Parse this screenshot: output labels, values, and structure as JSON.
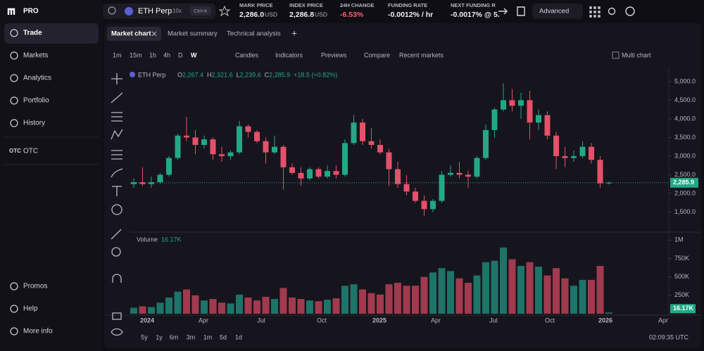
{
  "sidebar": {
    "logo": "PRO",
    "items": [
      "Trade",
      "Markets",
      "Analytics",
      "Portfolio",
      "History"
    ],
    "otc_icon": "OTC",
    "otc": "OTC",
    "bottom": [
      "Promos",
      "Help",
      "More info"
    ]
  },
  "header": {
    "symbol": "ETH Perp",
    "leverage": "10x",
    "shortcut": "Ctrl+K",
    "stats": [
      {
        "label": "MARK PRICE",
        "value": "2,286.0",
        "unit": "USD"
      },
      {
        "label": "INDEX PRICE",
        "value": "2,286.8",
        "unit": "USD"
      },
      {
        "label": "24H CHANGE",
        "value": "-6.53%"
      },
      {
        "label": "FUNDING RATE",
        "value": "-0.0012% / hr"
      },
      {
        "label": "NEXT FUNDING R",
        "value": "-0.0017% @ 5."
      }
    ],
    "mode": "Advanced"
  },
  "tabs": {
    "items": [
      "Market chart",
      "Market summary",
      "Technical analysis"
    ],
    "add": "+"
  },
  "toolbar": {
    "intervals": [
      "1m",
      "15m",
      "1h",
      "4h",
      "D",
      "W"
    ],
    "buttons": [
      "Candles",
      "Indicators",
      "Previews",
      "Compare",
      "Recent markets"
    ],
    "multi": "Multi chart"
  },
  "chart_data": {
    "type": "candlestick",
    "symbol": "ETH Perp",
    "legend": [
      {
        "key": "O",
        "value": "2,267.4"
      },
      {
        "key": "H",
        "value": "2,321.6"
      },
      {
        "key": "L",
        "value": "2,239.6"
      },
      {
        "key": "C",
        "value": "2,285.9"
      }
    ],
    "change": "+18.5 (+0.82%)",
    "ohlc": [
      [
        2250,
        2400,
        2150,
        2300
      ],
      [
        2300,
        2700,
        2200,
        2250
      ],
      [
        2250,
        2450,
        2150,
        2300
      ],
      [
        2300,
        2550,
        2250,
        2500
      ],
      [
        2500,
        3000,
        2450,
        2950
      ],
      [
        2950,
        3600,
        2900,
        3550
      ],
      [
        3550,
        4050,
        3400,
        3500
      ],
      [
        3500,
        3700,
        3050,
        3300
      ],
      [
        3300,
        3550,
        3200,
        3450
      ],
      [
        3450,
        3500,
        2900,
        3050
      ],
      [
        3050,
        3250,
        2850,
        3000
      ],
      [
        3000,
        3150,
        2900,
        3100
      ],
      [
        3100,
        3950,
        3050,
        3800
      ],
      [
        3800,
        3850,
        3500,
        3650
      ],
      [
        3650,
        3700,
        3350,
        3400
      ],
      [
        3400,
        3500,
        2800,
        3100
      ],
      [
        3100,
        3550,
        3050,
        3250
      ],
      [
        3250,
        3300,
        2100,
        2700
      ],
      [
        2700,
        2800,
        2500,
        2550
      ],
      [
        2550,
        2700,
        2200,
        2400
      ],
      [
        2400,
        2700,
        2350,
        2650
      ],
      [
        2650,
        2700,
        2400,
        2450
      ],
      [
        2450,
        2750,
        2400,
        2600
      ],
      [
        2600,
        2750,
        2400,
        2500
      ],
      [
        2500,
        3450,
        2450,
        3350
      ],
      [
        3350,
        4100,
        3300,
        3900
      ],
      [
        3900,
        4000,
        3300,
        3400
      ],
      [
        3400,
        3750,
        3200,
        3300
      ],
      [
        3300,
        3450,
        3050,
        3100
      ],
      [
        3100,
        3200,
        2200,
        2650
      ],
      [
        2650,
        2850,
        2150,
        2250
      ],
      [
        2250,
        2500,
        1950,
        2050
      ],
      [
        2050,
        2150,
        1750,
        1800
      ],
      [
        1800,
        1950,
        1400,
        1580
      ],
      [
        1580,
        1850,
        1500,
        1800
      ],
      [
        1800,
        2600,
        1750,
        2500
      ],
      [
        2500,
        2750,
        2450,
        2550
      ],
      [
        2550,
        2850,
        2400,
        2500
      ],
      [
        2500,
        2600,
        2150,
        2450
      ],
      [
        2450,
        3000,
        2400,
        2950
      ],
      [
        2950,
        3850,
        2900,
        3700
      ],
      [
        3700,
        4300,
        3500,
        4250
      ],
      [
        4250,
        4950,
        4200,
        4500
      ],
      [
        4500,
        4800,
        4200,
        4350
      ],
      [
        4350,
        4700,
        4000,
        4500
      ],
      [
        4500,
        4750,
        3450,
        3900
      ],
      [
        3900,
        4250,
        3700,
        4100
      ],
      [
        4100,
        4200,
        3450,
        3550
      ],
      [
        3550,
        3650,
        2650,
        3000
      ],
      [
        3000,
        3250,
        2700,
        2950
      ],
      [
        2950,
        3150,
        2850,
        3000
      ],
      [
        3000,
        3400,
        2950,
        3250
      ],
      [
        3250,
        3350,
        2800,
        2900
      ],
      [
        2900,
        3000,
        2150,
        2270
      ],
      [
        2267.4,
        2321.6,
        2239.6,
        2285.9
      ]
    ],
    "volumes": [
      80000,
      100000,
      90000,
      150000,
      220000,
      300000,
      330000,
      250000,
      180000,
      200000,
      150000,
      140000,
      260000,
      220000,
      180000,
      230000,
      200000,
      350000,
      220000,
      200000,
      180000,
      170000,
      190000,
      210000,
      380000,
      400000,
      330000,
      280000,
      260000,
      400000,
      420000,
      380000,
      380000,
      500000,
      560000,
      620000,
      580000,
      480000,
      420000,
      520000,
      700000,
      720000,
      900000,
      740000,
      650000,
      700000,
      640000,
      520000,
      620000,
      480000,
      380000,
      460000,
      460000,
      650000,
      16170
    ],
    "last": {
      "value": 2285.9,
      "label": "2,285.9"
    },
    "volume_label": "Volume",
    "last_volume": {
      "value": 16170,
      "label": "16.17K"
    },
    "ylim": [
      1000,
      5300
    ],
    "yticks": [
      {
        "value": 1500,
        "label": "1,500.0"
      },
      {
        "value": 2000,
        "label": "2,000.0"
      },
      {
        "value": 2500,
        "label": "2,500.0"
      },
      {
        "value": 3000,
        "label": "3,000.0"
      },
      {
        "value": 3500,
        "label": "3,500.0"
      },
      {
        "value": 4000,
        "label": "4,000.0"
      },
      {
        "value": 4500,
        "label": "4,500.0"
      },
      {
        "value": 5000,
        "label": "5,000.0"
      }
    ],
    "vlim": [
      0,
      1080000
    ],
    "vticks": [
      {
        "value": 250000,
        "label": "250K"
      },
      {
        "value": 500000,
        "label": "500K"
      },
      {
        "value": 750000,
        "label": "750K"
      },
      {
        "value": 1000000,
        "label": "1M"
      }
    ],
    "xlabels": [
      "2024",
      "Apr",
      "Jul",
      "Oct",
      "2025",
      "Apr",
      "Jul",
      "Oct",
      "2026",
      "Apr"
    ],
    "up_color": "#22a884",
    "down_color": "#e5506a",
    "up_volume_color": "#1d7468",
    "down_volume_color": "#a13a4e",
    "grid": false
  },
  "footer": {
    "ranges": [
      "5y",
      "1y",
      "6m",
      "3m",
      "1m",
      "5d",
      "1d"
    ],
    "clock": "02:09:35 UTC"
  }
}
